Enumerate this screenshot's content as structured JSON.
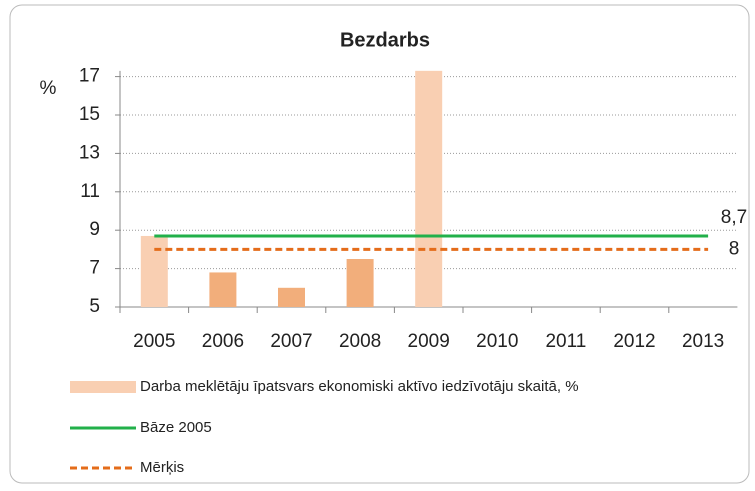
{
  "chart_data": {
    "type": "bar",
    "title": "Bezdarbs",
    "y_label": "%",
    "categories": [
      "2005",
      "2006",
      "2007",
      "2008",
      "2009",
      "2010",
      "2011",
      "2012",
      "2013"
    ],
    "series": [
      {
        "name": "Darba meklētāju īpatsvars ekonomiski aktīvo iedzīvotāju skaitā, %",
        "type": "bar",
        "colors": [
          "#f9cfb2",
          "#f2ae7b",
          "#f2ae7b",
          "#f2ae7b",
          "#f9cfb2",
          null,
          null,
          null,
          null
        ],
        "values": [
          8.7,
          6.8,
          6.0,
          7.5,
          17.3,
          null,
          null,
          null,
          null
        ]
      },
      {
        "name": "Bāze 2005",
        "type": "line",
        "color": "#22b04a",
        "dashed": false,
        "values": [
          8.7,
          8.7,
          8.7,
          8.7,
          8.7,
          8.7,
          8.7,
          8.7,
          8.7
        ],
        "value_labels": [
          null,
          null,
          null,
          null,
          null,
          null,
          null,
          null,
          "8,7"
        ]
      },
      {
        "name": "Mērķis",
        "type": "line",
        "color": "#e46c1a",
        "dashed": true,
        "values": [
          8,
          8,
          8,
          8,
          8,
          8,
          8,
          8,
          8
        ],
        "value_labels": [
          null,
          null,
          null,
          null,
          null,
          null,
          null,
          null,
          "8"
        ]
      }
    ],
    "ylim": [
      5,
      17.3
    ],
    "yticks": [
      5,
      7,
      9,
      11,
      13,
      15,
      17
    ],
    "grid": true
  }
}
